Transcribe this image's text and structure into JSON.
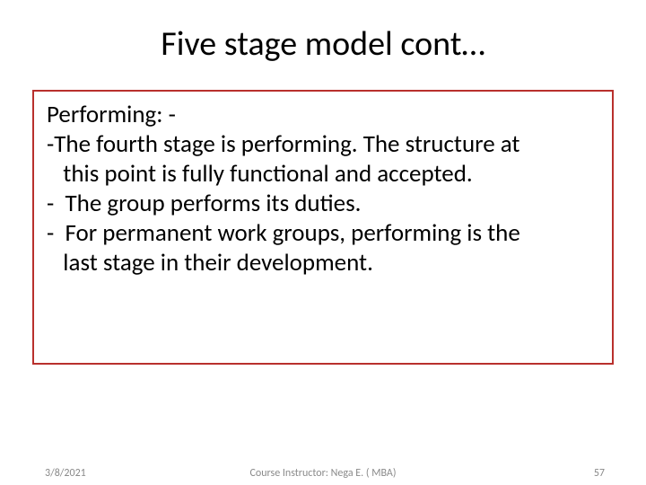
{
  "title": "Five stage model cont…",
  "box": {
    "border_color": "#b9302d",
    "lines": [
      "Performing: -",
      "-The fourth stage is performing. The structure at",
      "   this point is fully functional and accepted.",
      "-  The group performs its duties.",
      "-  For permanent work groups, performing is the",
      "   last stage in their development."
    ]
  },
  "footer": {
    "date": "3/8/2021",
    "center": "Course Instructor:  Nega E. ( MBA)",
    "page": "57"
  },
  "style": {
    "title_fontsize": 38,
    "body_fontsize": 27,
    "footer_fontsize": 12,
    "footer_color": "#8a8a8a",
    "background_color": "#ffffff"
  }
}
